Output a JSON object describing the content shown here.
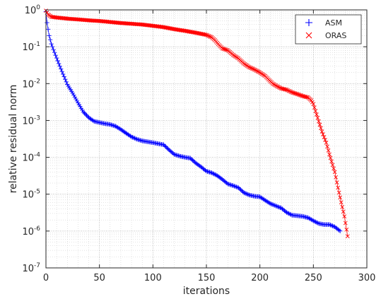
{
  "chart_data": {
    "type": "line",
    "xlabel": "iterations",
    "ylabel": "relative residual norm",
    "xlim": [
      0,
      300
    ],
    "ylim": [
      1e-07,
      1
    ],
    "yscale": "log",
    "grid": true,
    "minor_grid": true,
    "legend_position": "top-right",
    "x_ticks": [
      "0",
      "50",
      "100",
      "150",
      "200",
      "250",
      "300"
    ],
    "y_ticks": [
      {
        "base": "10",
        "exp": "0",
        "value": 1
      },
      {
        "base": "10",
        "exp": "-1",
        "value": 0.1
      },
      {
        "base": "10",
        "exp": "-2",
        "value": 0.01
      },
      {
        "base": "10",
        "exp": "-3",
        "value": 0.001
      },
      {
        "base": "10",
        "exp": "-4",
        "value": 0.0001
      },
      {
        "base": "10",
        "exp": "-5",
        "value": 1e-05
      },
      {
        "base": "10",
        "exp": "-6",
        "value": 1e-06
      },
      {
        "base": "10",
        "exp": "-7",
        "value": 1e-07
      }
    ],
    "series": [
      {
        "name": "ASM",
        "color": "#0000ff",
        "marker": "plus",
        "x_end": 275,
        "points": [
          [
            0,
            0.9
          ],
          [
            1,
            0.45
          ],
          [
            3,
            0.2
          ],
          [
            5,
            0.12
          ],
          [
            8,
            0.07
          ],
          [
            12,
            0.035
          ],
          [
            16,
            0.018
          ],
          [
            20,
            0.0095
          ],
          [
            25,
            0.0055
          ],
          [
            30,
            0.003
          ],
          [
            35,
            0.0017
          ],
          [
            40,
            0.0012
          ],
          [
            45,
            0.00095
          ],
          [
            50,
            0.00088
          ],
          [
            55,
            0.00082
          ],
          [
            60,
            0.00078
          ],
          [
            65,
            0.0007
          ],
          [
            70,
            0.00057
          ],
          [
            75,
            0.00045
          ],
          [
            80,
            0.00036
          ],
          [
            85,
            0.00031
          ],
          [
            90,
            0.00028
          ],
          [
            100,
            0.00025
          ],
          [
            110,
            0.00022
          ],
          [
            115,
            0.00016
          ],
          [
            120,
            0.00012
          ],
          [
            125,
            0.000108
          ],
          [
            130,
            0.0001
          ],
          [
            135,
            9.5e-05
          ],
          [
            140,
            7e-05
          ],
          [
            145,
            5.5e-05
          ],
          [
            150,
            4.2e-05
          ],
          [
            155,
            3.8e-05
          ],
          [
            160,
            3.2e-05
          ],
          [
            165,
            2.5e-05
          ],
          [
            170,
            1.9e-05
          ],
          [
            175,
            1.7e-05
          ],
          [
            180,
            1.5e-05
          ],
          [
            185,
            1.1e-05
          ],
          [
            190,
            9.5e-06
          ],
          [
            195,
            8.8e-06
          ],
          [
            200,
            8.5e-06
          ],
          [
            205,
            6.8e-06
          ],
          [
            210,
            5.5e-06
          ],
          [
            215,
            4.8e-06
          ],
          [
            220,
            4.2e-06
          ],
          [
            225,
            3.2e-06
          ],
          [
            230,
            2.7e-06
          ],
          [
            235,
            2.6e-06
          ],
          [
            240,
            2.5e-06
          ],
          [
            245,
            2.3e-06
          ],
          [
            250,
            1.9e-06
          ],
          [
            255,
            1.6e-06
          ],
          [
            260,
            1.5e-06
          ],
          [
            265,
            1.5e-06
          ],
          [
            270,
            1.3e-06
          ],
          [
            275,
            1e-06
          ]
        ]
      },
      {
        "name": "ORAS",
        "color": "#ff0000",
        "marker": "x",
        "x_end": 282,
        "points": [
          [
            0,
            0.95
          ],
          [
            2,
            0.75
          ],
          [
            5,
            0.65
          ],
          [
            10,
            0.62
          ],
          [
            20,
            0.58
          ],
          [
            30,
            0.55
          ],
          [
            40,
            0.52
          ],
          [
            50,
            0.5
          ],
          [
            60,
            0.47
          ],
          [
            70,
            0.44
          ],
          [
            80,
            0.42
          ],
          [
            90,
            0.4
          ],
          [
            100,
            0.37
          ],
          [
            110,
            0.34
          ],
          [
            120,
            0.3
          ],
          [
            130,
            0.27
          ],
          [
            140,
            0.24
          ],
          [
            150,
            0.21
          ],
          [
            155,
            0.18
          ],
          [
            158,
            0.15
          ],
          [
            162,
            0.11
          ],
          [
            165,
            0.09
          ],
          [
            170,
            0.08
          ],
          [
            175,
            0.06
          ],
          [
            180,
            0.048
          ],
          [
            185,
            0.035
          ],
          [
            190,
            0.028
          ],
          [
            195,
            0.024
          ],
          [
            200,
            0.02
          ],
          [
            205,
            0.016
          ],
          [
            208,
            0.013
          ],
          [
            212,
            0.01
          ],
          [
            216,
            0.0085
          ],
          [
            220,
            0.0074
          ],
          [
            225,
            0.0068
          ],
          [
            230,
            0.0058
          ],
          [
            235,
            0.0052
          ],
          [
            240,
            0.0046
          ],
          [
            245,
            0.0042
          ],
          [
            248,
            0.0035
          ],
          [
            250,
            0.0028
          ],
          [
            252,
            0.0018
          ],
          [
            255,
            0.00095
          ],
          [
            258,
            0.0005
          ],
          [
            262,
            0.00025
          ],
          [
            265,
            0.00012
          ],
          [
            270,
            4e-05
          ],
          [
            273,
            1.5e-05
          ],
          [
            276,
            6e-06
          ],
          [
            279,
            2.5e-06
          ],
          [
            282,
            7.2e-07
          ]
        ]
      }
    ]
  }
}
